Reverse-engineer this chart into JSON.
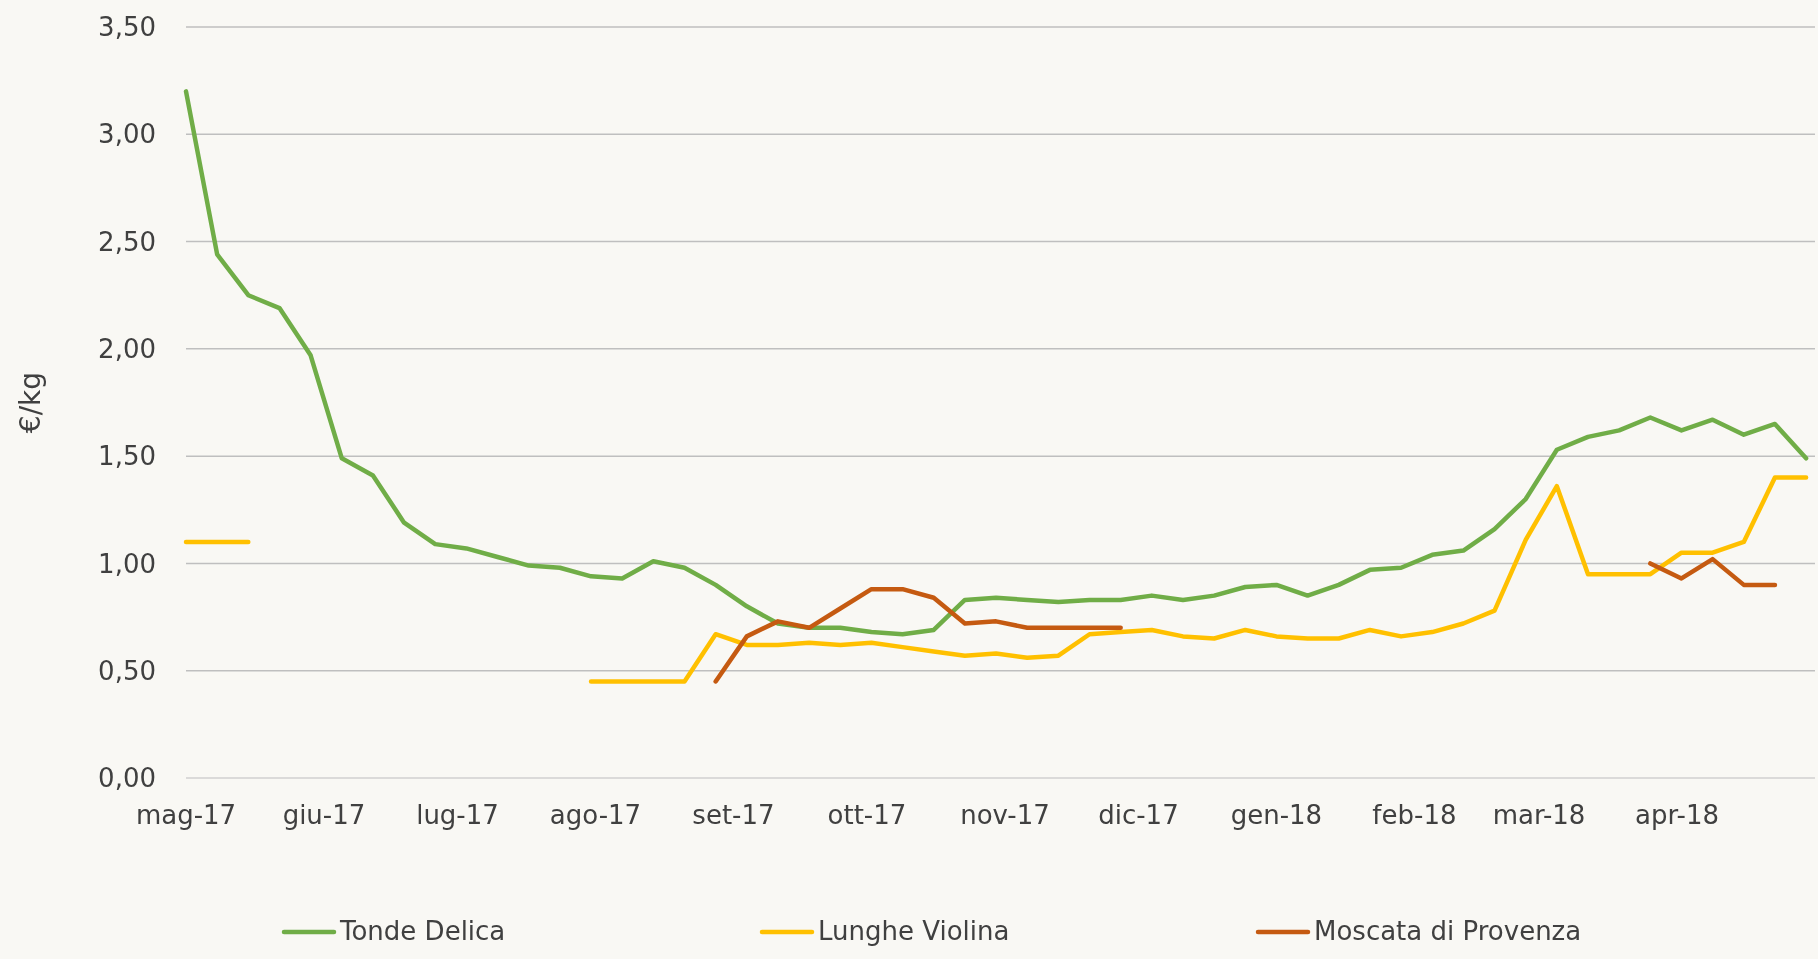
{
  "chart_data": {
    "type": "line",
    "ylabel": "€/kg",
    "x": [
      "2017-05-01",
      "2017-05-08",
      "2017-05-15",
      "2017-05-22",
      "2017-05-29",
      "2017-06-05",
      "2017-06-12",
      "2017-06-19",
      "2017-06-26",
      "2017-07-03",
      "2017-07-10",
      "2017-07-17",
      "2017-07-24",
      "2017-07-31",
      "2017-08-07",
      "2017-08-14",
      "2017-08-21",
      "2017-08-28",
      "2017-09-04",
      "2017-09-11",
      "2017-09-18",
      "2017-09-25",
      "2017-10-02",
      "2017-10-09",
      "2017-10-16",
      "2017-10-23",
      "2017-10-30",
      "2017-11-06",
      "2017-11-13",
      "2017-11-20",
      "2017-11-27",
      "2017-12-04",
      "2017-12-11",
      "2017-12-18",
      "2017-12-25",
      "2018-01-01",
      "2018-01-08",
      "2018-01-15",
      "2018-01-22",
      "2018-01-29",
      "2018-02-05",
      "2018-02-12",
      "2018-02-19",
      "2018-02-26",
      "2018-03-05",
      "2018-03-12",
      "2018-03-19",
      "2018-03-26",
      "2018-04-02",
      "2018-04-09",
      "2018-04-16",
      "2018-04-23",
      "2018-04-30"
    ],
    "series": [
      {
        "name": "Tonde Delica",
        "color": "#70ad47",
        "values": [
          3.2,
          2.44,
          2.25,
          2.19,
          1.97,
          1.49,
          1.41,
          1.19,
          1.09,
          1.07,
          1.03,
          0.99,
          0.98,
          0.94,
          0.93,
          1.01,
          0.98,
          0.9,
          0.8,
          0.72,
          0.7,
          0.7,
          0.68,
          0.67,
          0.69,
          0.83,
          0.84,
          0.83,
          0.82,
          0.83,
          0.83,
          0.85,
          0.83,
          0.85,
          0.89,
          0.9,
          0.85,
          0.9,
          0.97,
          0.98,
          1.04,
          1.06,
          1.16,
          1.3,
          1.53,
          1.59,
          1.62,
          1.68,
          1.62,
          1.67,
          1.6,
          1.65,
          1.49
        ]
      },
      {
        "name": "Lunghe Violina",
        "color": "#ffc000",
        "values": [
          1.1,
          1.1,
          1.1,
          null,
          null,
          null,
          null,
          null,
          null,
          null,
          null,
          null,
          null,
          0.45,
          0.45,
          0.45,
          0.45,
          0.67,
          0.62,
          0.62,
          0.63,
          0.62,
          0.63,
          0.61,
          0.59,
          0.57,
          0.58,
          0.56,
          0.57,
          0.67,
          0.68,
          0.69,
          0.66,
          0.65,
          0.69,
          0.66,
          0.65,
          0.65,
          0.69,
          0.66,
          0.68,
          0.72,
          0.78,
          1.11,
          1.36,
          0.95,
          0.95,
          0.95,
          1.05,
          1.05,
          1.1,
          1.4,
          1.4
        ]
      },
      {
        "name": "Moscata di Provenza",
        "color": "#c55a11",
        "values": [
          null,
          null,
          null,
          null,
          null,
          null,
          null,
          null,
          null,
          null,
          null,
          null,
          null,
          null,
          null,
          null,
          null,
          0.45,
          0.66,
          0.73,
          0.7,
          0.79,
          0.88,
          0.88,
          0.84,
          0.72,
          0.73,
          0.7,
          0.7,
          0.7,
          0.7,
          null,
          null,
          null,
          null,
          null,
          null,
          null,
          null,
          null,
          null,
          null,
          null,
          null,
          null,
          null,
          null,
          1.0,
          0.93,
          1.02,
          0.9,
          0.9,
          null
        ]
      }
    ],
    "xlim": [
      "2017-05-01",
      "2018-05-02"
    ],
    "xticks": [
      {
        "value": "2017-05-01",
        "label": "mag-17"
      },
      {
        "value": "2017-06-01",
        "label": "giu-17"
      },
      {
        "value": "2017-07-01",
        "label": "lug-17"
      },
      {
        "value": "2017-08-01",
        "label": "ago-17"
      },
      {
        "value": "2017-09-01",
        "label": "set-17"
      },
      {
        "value": "2017-10-01",
        "label": "ott-17"
      },
      {
        "value": "2017-11-01",
        "label": "nov-17"
      },
      {
        "value": "2017-12-01",
        "label": "dic-17"
      },
      {
        "value": "2018-01-01",
        "label": "gen-18"
      },
      {
        "value": "2018-02-01",
        "label": "feb-18"
      },
      {
        "value": "2018-03-01",
        "label": "mar-18"
      },
      {
        "value": "2018-04-01",
        "label": "apr-18"
      }
    ],
    "ylim": [
      0,
      3.5
    ],
    "yticks": [
      {
        "value": 0,
        "label": "0,00"
      },
      {
        "value": 0.5,
        "label": "0,50"
      },
      {
        "value": 1,
        "label": "1,00"
      },
      {
        "value": 1.5,
        "label": "1,50"
      },
      {
        "value": 2,
        "label": "2,00"
      },
      {
        "value": 2.5,
        "label": "2,50"
      },
      {
        "value": 3,
        "label": "3,00"
      },
      {
        "value": 3.5,
        "label": "3,50"
      }
    ],
    "grid": "y",
    "legend": "bottom",
    "marker": "none",
    "line_style": "solid"
  }
}
